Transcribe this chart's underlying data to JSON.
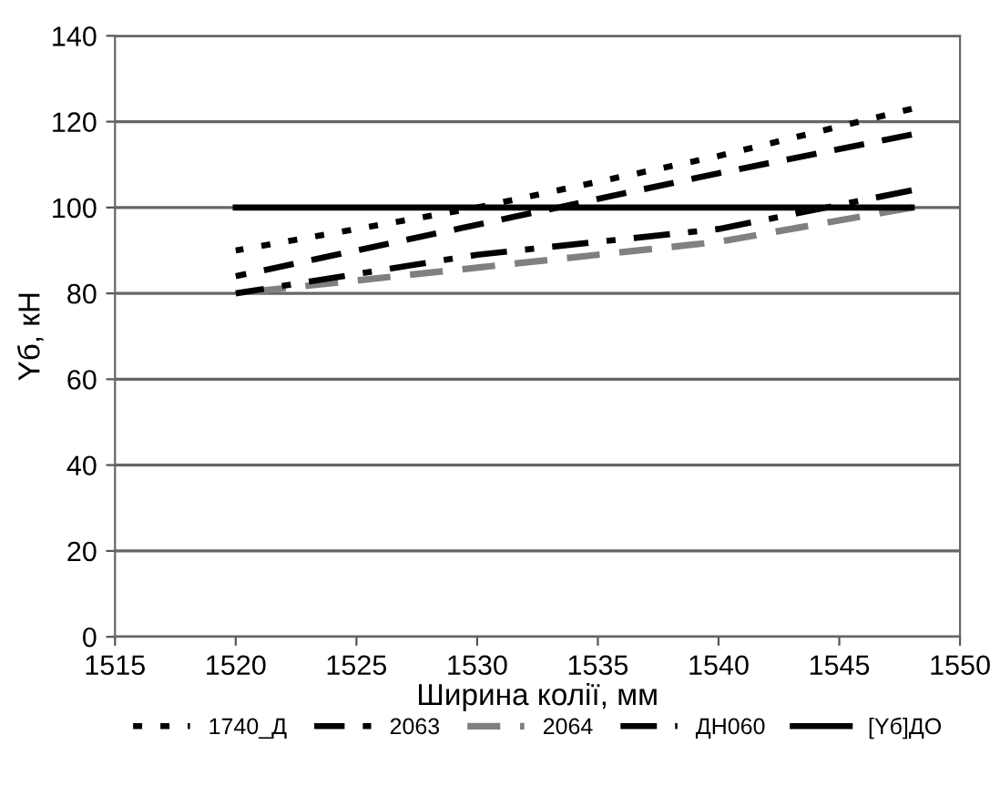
{
  "chart_data": {
    "type": "line",
    "xlabel": "Ширина колії, мм",
    "ylabel": "Yб, кН",
    "xlim": [
      1515,
      1550
    ],
    "xticks": [
      1515,
      1520,
      1525,
      1530,
      1535,
      1540,
      1545,
      1550
    ],
    "ylim": [
      0,
      140
    ],
    "yticks": [
      0,
      20,
      40,
      60,
      80,
      100,
      120,
      140
    ],
    "grid": "y",
    "legend": "bottom",
    "marker": "none",
    "series": [
      {
        "name": "1740_Д",
        "color": "#000000",
        "line_style": "dotted",
        "x": [
          1520,
          1530,
          1540,
          1548
        ],
        "values": [
          90,
          100,
          112,
          123
        ]
      },
      {
        "name": "2063",
        "color": "#000000",
        "line_style": "dashed",
        "x": [
          1520,
          1530,
          1540,
          1548
        ],
        "values": [
          84,
          96,
          108,
          117
        ]
      },
      {
        "name": "2064",
        "color": "#808080",
        "line_style": "dashed",
        "x": [
          1520,
          1530,
          1540,
          1548
        ],
        "values": [
          80,
          86,
          92,
          100
        ]
      },
      {
        "name": "ДН060",
        "color": "#000000",
        "line_style": "dashdot",
        "x": [
          1520,
          1530,
          1540,
          1548
        ],
        "values": [
          80,
          89,
          95,
          104
        ]
      },
      {
        "name": "[Yб]ДО",
        "color": "#000000",
        "line_style": "solid",
        "x": [
          1520,
          1548
        ],
        "values": [
          100,
          100
        ]
      }
    ]
  }
}
